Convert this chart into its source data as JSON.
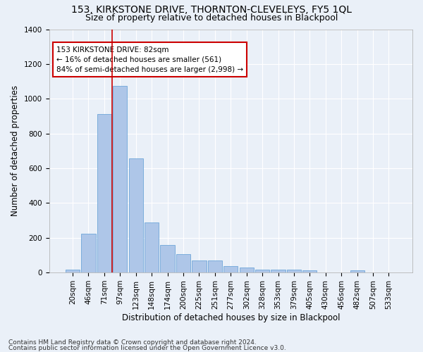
{
  "title": "153, KIRKSTONE DRIVE, THORNTON-CLEVELEYS, FY5 1QL",
  "subtitle": "Size of property relative to detached houses in Blackpool",
  "xlabel": "Distribution of detached houses by size in Blackpool",
  "ylabel": "Number of detached properties",
  "bar_labels": [
    "20sqm",
    "46sqm",
    "71sqm",
    "97sqm",
    "123sqm",
    "148sqm",
    "174sqm",
    "200sqm",
    "225sqm",
    "251sqm",
    "277sqm",
    "302sqm",
    "328sqm",
    "353sqm",
    "379sqm",
    "405sqm",
    "430sqm",
    "456sqm",
    "482sqm",
    "507sqm",
    "533sqm"
  ],
  "bar_values": [
    18,
    225,
    910,
    1075,
    655,
    290,
    158,
    105,
    70,
    70,
    38,
    27,
    18,
    18,
    18,
    14,
    0,
    0,
    12,
    0,
    0
  ],
  "bar_color": "#aec6e8",
  "bar_edge_color": "#5b9bd5",
  "ylim": [
    0,
    1400
  ],
  "yticks": [
    0,
    200,
    400,
    600,
    800,
    1000,
    1200,
    1400
  ],
  "property_line_bin": 2.5,
  "property_line_color": "#cc0000",
  "annotation_text": "153 KIRKSTONE DRIVE: 82sqm\n← 16% of detached houses are smaller (561)\n84% of semi-detached houses are larger (2,998) →",
  "annotation_box_color": "#ffffff",
  "annotation_box_edge_color": "#cc0000",
  "footnote1": "Contains HM Land Registry data © Crown copyright and database right 2024.",
  "footnote2": "Contains public sector information licensed under the Open Government Licence v3.0.",
  "background_color": "#eaf0f8",
  "grid_color": "#ffffff",
  "title_fontsize": 10,
  "subtitle_fontsize": 9,
  "xlabel_fontsize": 8.5,
  "ylabel_fontsize": 8.5,
  "tick_fontsize": 7.5,
  "footnote_fontsize": 6.5,
  "annot_fontsize": 7.5
}
